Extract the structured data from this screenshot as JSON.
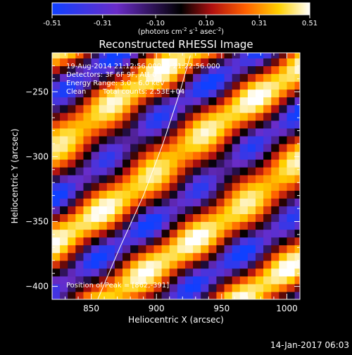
{
  "colorbar": {
    "tick_labels": [
      "-0.51",
      "-0.31",
      "-0.10",
      "0.10",
      "0.31",
      "0.51"
    ],
    "tick_values": [
      -0.51,
      -0.31,
      -0.1,
      0.1,
      0.31,
      0.51
    ],
    "range": [
      -0.51,
      0.51
    ],
    "units": {
      "prefix": "(photons cm",
      "exp1": "-2",
      "mid": " s",
      "exp2": "-1",
      "mid2": " asec",
      "exp3": "-2",
      "suffix": ")"
    }
  },
  "chart_data": {
    "type": "heatmap",
    "title": "Reconstructed RHESSI Image",
    "xlabel": "Heliocentric X (arcsec)",
    "ylabel": "Heliocentric Y (arcsec)",
    "xlim": [
      820,
      1010
    ],
    "ylim": [
      -410,
      -220
    ],
    "x_ticks": [
      850,
      900,
      950,
      1000
    ],
    "y_ticks": [
      -250,
      -300,
      -350,
      -400
    ],
    "x_tick_labels": [
      "850",
      "900",
      "950",
      "1000"
    ],
    "y_tick_labels": [
      "−250",
      "−300",
      "−350",
      "−400"
    ],
    "colormap": [
      "#1040ff",
      "#6a2cc8",
      "#000000",
      "#b01010",
      "#ff6000",
      "#ffd000",
      "#ffffff"
    ],
    "stripe_angle_deg": 36,
    "stripe_period_arcsec": 60,
    "annotations": {
      "line1": "19-Aug-2014 21:12:56.000 to 21:22:56.000",
      "line2": "Detectors: 3F 6F 9F, Att 0",
      "line3": "Energy Range: 3.0 - 6.0 keV",
      "line4_a": "Clean",
      "line4_b": "Total counts: 2.53E+04",
      "peak_label": "Position of Peak = [862,-391]"
    },
    "peak_position": [
      862,
      -391
    ],
    "limb_curve": [
      [
        855,
        -410
      ],
      [
        872,
        -370
      ],
      [
        890,
        -330
      ],
      [
        905,
        -290
      ],
      [
        918,
        -250
      ],
      [
        926,
        -222
      ]
    ]
  },
  "footer": {
    "timestamp": "14-Jan-2017 06:03"
  }
}
